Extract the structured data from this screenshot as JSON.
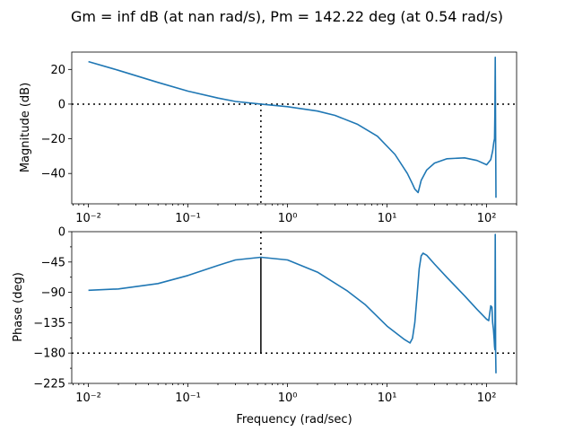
{
  "chart_data": {
    "type": "line",
    "title": "Gm = inf dB (at nan rad/s), Pm = 142.22 deg (at 0.54 rad/s)",
    "x_scale": "log",
    "xlabel": "Frequency (rad/sec)",
    "xlim": [
      0.0068,
      200
    ],
    "x_tick_values": [
      0.01,
      0.1,
      1,
      10,
      100
    ],
    "x_tick_labels": [
      "10⁻²",
      "10⁻¹",
      "10⁰",
      "10¹",
      "10²"
    ],
    "grid": false,
    "line_color": "#1f77b4",
    "panels": [
      {
        "name": "magnitude",
        "ylabel": "Magnitude (dB)",
        "ylim": [
          -57.5,
          30
        ],
        "y_ticks": [
          20,
          0,
          -20,
          -40
        ],
        "y_tick_labels": [
          "20",
          "0",
          "−20",
          "−40"
        ],
        "reference_line": 0,
        "crossover_frequency": 0.54,
        "series": {
          "x": [
            0.01,
            0.02,
            0.05,
            0.1,
            0.2,
            0.3,
            0.54,
            1,
            2,
            3,
            5,
            8,
            12,
            16,
            18,
            19,
            20.5,
            22,
            25,
            30,
            40,
            60,
            80,
            100,
            110,
            115,
            118,
            120,
            121,
            122,
            123,
            124
          ],
          "y": [
            24.5,
            19.5,
            12.5,
            7.5,
            3.5,
            1.5,
            0,
            -1.5,
            -4,
            -6.5,
            -11.5,
            -18.5,
            -29,
            -40,
            -46,
            -49,
            -51,
            -44,
            -38,
            -34,
            -31.5,
            -31,
            -32.5,
            -35,
            -32,
            -27,
            -22,
            -20,
            -5,
            27,
            -16,
            -54
          ]
        }
      },
      {
        "name": "phase",
        "ylabel": "Phase (deg)",
        "ylim": [
          -225,
          0
        ],
        "y_ticks": [
          0,
          -45,
          -90,
          -135,
          -180,
          -225
        ],
        "y_tick_labels": [
          "0",
          "−45",
          "−90",
          "−135",
          "−180",
          "−225"
        ],
        "reference_line": -180,
        "crossover_frequency": 0.54,
        "margin_marker": [
          -180,
          -37.8
        ],
        "series": {
          "x": [
            0.01,
            0.02,
            0.05,
            0.1,
            0.2,
            0.3,
            0.54,
            1,
            2,
            4,
            6,
            10,
            15,
            17,
            18,
            19,
            20,
            21,
            22,
            23,
            25,
            30,
            40,
            60,
            80,
            100,
            105,
            110,
            113,
            115,
            117,
            119,
            120,
            121,
            122,
            123,
            124
          ],
          "y": [
            -87,
            -85,
            -77,
            -65,
            -50,
            -42,
            -38,
            -42,
            -60,
            -88,
            -108,
            -140,
            -160,
            -165,
            -158,
            -135,
            -95,
            -55,
            -36,
            -32,
            -35,
            -48,
            -68,
            -95,
            -115,
            -130,
            -132,
            -110,
            -112,
            -135,
            -145,
            -160,
            -170,
            -175,
            -4,
            -175,
            -210
          ]
        }
      }
    ]
  }
}
